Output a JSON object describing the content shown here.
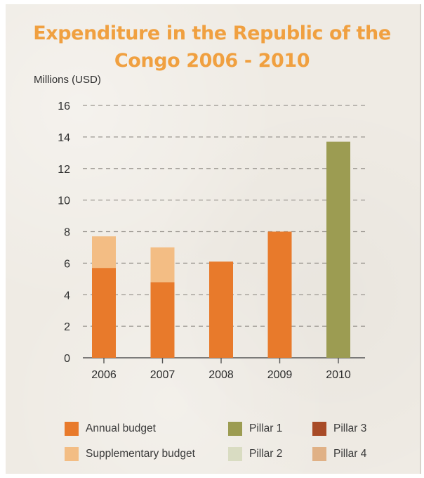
{
  "chart_data": {
    "type": "bar",
    "stacked": true,
    "title": "Expenditure in the Republic of the Congo 2006 - 2010",
    "ylabel": "Millions (USD)",
    "xlabel": "",
    "categories": [
      "2006",
      "2007",
      "2008",
      "2009",
      "2010"
    ],
    "ylim": [
      0,
      16
    ],
    "yticks": [
      0,
      2,
      4,
      6,
      8,
      10,
      12,
      14,
      16
    ],
    "grid": "dashed horizontal",
    "legend_position": "bottom",
    "series": [
      {
        "name": "Annual budget",
        "color": "#e87a2b",
        "values": [
          5.7,
          4.8,
          6.1,
          8.0,
          0
        ]
      },
      {
        "name": "Supplementary budget",
        "color": "#f3bd84",
        "values": [
          2.0,
          2.2,
          0,
          0,
          0
        ]
      },
      {
        "name": "Pillar 1",
        "color": "#9c9c52",
        "values": [
          0,
          0,
          0,
          0,
          13.7
        ]
      },
      {
        "name": "Pillar 2",
        "color": "#d9dcc2",
        "values": [
          0,
          0,
          0,
          0,
          0
        ]
      },
      {
        "name": "Pillar 3",
        "color": "#a84b27",
        "values": [
          0,
          0,
          0,
          0,
          0
        ]
      },
      {
        "name": "Pillar 4",
        "color": "#e0b186",
        "values": [
          0,
          0,
          0,
          0,
          0
        ]
      }
    ]
  }
}
